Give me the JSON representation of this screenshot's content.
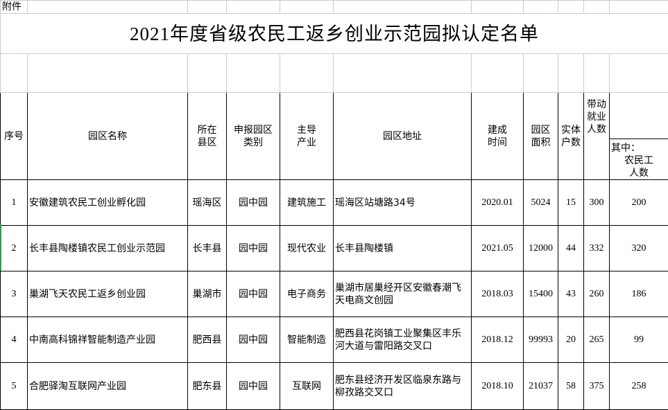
{
  "attachment_label": "附件",
  "title": "2021年度省级农民工返乡创业示范园拟认定名单",
  "headers": {
    "seq": "序号",
    "name": "园区名称",
    "county": "所在县区",
    "category": "申报园区类别",
    "industry": "主导产业",
    "address": "园区地址",
    "built": "建成时间",
    "area": "园区面积",
    "entities": "实体户数",
    "employment": "带动就业人数",
    "migrant_line1": "其中：",
    "migrant_line2": "农民工",
    "migrant_line3": "人数"
  },
  "rows": [
    {
      "seq": "1",
      "name": "安徽建筑农民工创业孵化园",
      "county": "瑶海区",
      "category": "园中园",
      "industry": "建筑施工",
      "address": "瑶海区站塘路34号",
      "built": "2020.01",
      "area": "5024",
      "entities": "15",
      "employment": "300",
      "migrant": "200"
    },
    {
      "seq": "2",
      "name": "长丰县陶楼镇农民工创业示范园",
      "county": "长丰县",
      "category": "园中园",
      "industry": "现代农业",
      "address": "长丰县陶楼镇",
      "built": "2021.05",
      "area": "12000",
      "entities": "44",
      "employment": "332",
      "migrant": "320"
    },
    {
      "seq": "3",
      "name": "巢湖飞天农民工返乡创业园",
      "county": "巢湖市",
      "category": "园中园",
      "industry": "电子商务",
      "address": "巢湖市居巢经开区安徽春潮飞天电商文创园",
      "built": "2018.03",
      "area": "15400",
      "entities": "43",
      "employment": "260",
      "migrant": "186"
    },
    {
      "seq": "4",
      "name": "中南高科锦祥智能制造产业园",
      "county": "肥西县",
      "category": "园中园",
      "industry": "智能制造",
      "address": "肥西县花岗镇工业聚集区丰乐河大道与雷阳路交叉口",
      "built": "2018.12",
      "area": "99993",
      "entities": "20",
      "employment": "265",
      "migrant": "99"
    },
    {
      "seq": "5",
      "name": "合肥驿淘互联网产业园",
      "county": "肥东县",
      "category": "园中园",
      "industry": "互联网",
      "address": "肥东县经济开发区临泉东路与柳孜路交叉口",
      "built": "2018.10",
      "area": "21037",
      "entities": "58",
      "employment": "375",
      "migrant": "258"
    }
  ]
}
